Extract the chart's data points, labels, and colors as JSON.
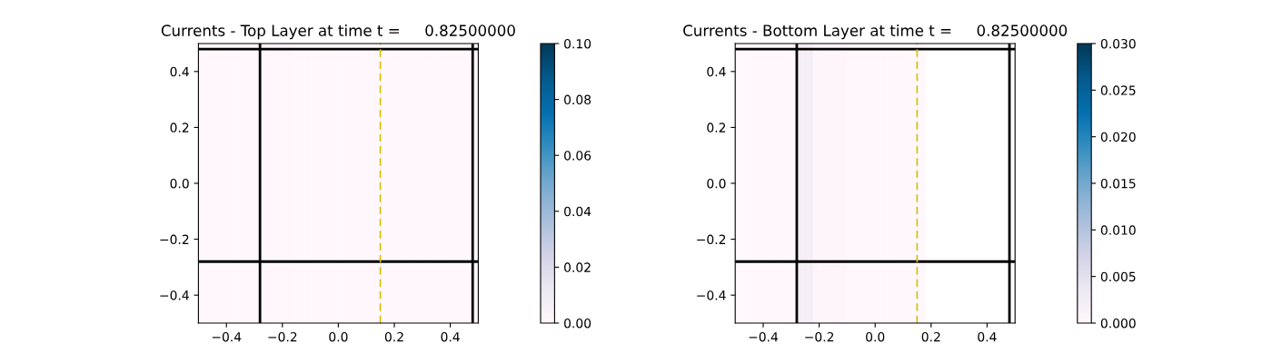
{
  "chart_data": [
    {
      "type": "heatmap",
      "title": "Currents - Top Layer at time t =     0.82500000",
      "x": [
        -0.49,
        -0.47,
        -0.45,
        -0.43,
        -0.41,
        -0.39,
        -0.37,
        -0.35,
        -0.33,
        -0.31,
        -0.29,
        -0.27,
        -0.25,
        -0.23,
        -0.21,
        -0.19,
        -0.17,
        -0.15,
        -0.13,
        -0.11,
        -0.09,
        -0.07,
        -0.05,
        -0.03,
        -0.01,
        0.01,
        0.03,
        0.05,
        0.07,
        0.09,
        0.11,
        0.13,
        0.15,
        0.17,
        0.19,
        0.21,
        0.23,
        0.25,
        0.27,
        0.29,
        0.31,
        0.33,
        0.35,
        0.37,
        0.39,
        0.41,
        0.43,
        0.45,
        0.47,
        0.49
      ],
      "cells": [
        [
          0,
          0,
          0,
          0,
          0,
          0,
          0,
          0,
          0,
          0,
          0,
          0.0005,
          0.0005,
          0.0005,
          0.0005,
          0.0005,
          0.0005,
          0,
          0,
          0,
          0,
          0,
          0,
          0,
          0,
          0,
          0,
          0,
          0,
          0,
          0,
          0,
          0,
          0,
          0,
          0,
          0,
          0,
          0,
          0,
          0,
          0,
          0,
          0,
          0,
          0,
          0,
          0,
          0,
          0
        ]
      ],
      "xlim": [
        -0.5,
        0.5
      ],
      "ylim": [
        -0.5,
        0.5
      ],
      "xticks": [
        {
          "value": -0.4,
          "label": "−0.4"
        },
        {
          "value": -0.2,
          "label": "−0.2"
        },
        {
          "value": 0,
          "label": "0.0"
        },
        {
          "value": 0.2,
          "label": "0.2"
        },
        {
          "value": 0.4,
          "label": "0.4"
        }
      ],
      "yticks": [
        {
          "value": -0.4,
          "label": "−0.4"
        },
        {
          "value": -0.2,
          "label": "−0.2"
        },
        {
          "value": 0,
          "label": "0.0"
        },
        {
          "value": 0.2,
          "label": "0.2"
        },
        {
          "value": 0.4,
          "label": "0.4"
        }
      ],
      "clim": [
        0,
        0.1
      ],
      "cticks": [
        {
          "value": 0,
          "label": "0.00"
        },
        {
          "value": 0.02,
          "label": "0.02"
        },
        {
          "value": 0.04,
          "label": "0.04"
        },
        {
          "value": 0.06,
          "label": "0.06"
        },
        {
          "value": 0.08,
          "label": "0.08"
        },
        {
          "value": 0.1,
          "label": "0.10"
        }
      ],
      "ref_lines": [
        {
          "axis": "x",
          "value": -0.28,
          "color": "#000000",
          "line_style": "solid"
        },
        {
          "axis": "x",
          "value": 0.48,
          "color": "#000000",
          "line_style": "solid"
        },
        {
          "axis": "y",
          "value": 0.48,
          "color": "#000000",
          "line_style": "solid"
        },
        {
          "axis": "y",
          "value": -0.28,
          "color": "#000000",
          "line_style": "solid"
        },
        {
          "axis": "x",
          "value": 0.15,
          "color": "#d4c000",
          "line_style": "dashed"
        }
      ]
    },
    {
      "type": "heatmap",
      "title": "Currents - Bottom Layer at time t =     0.82500000",
      "x": [
        -0.49,
        -0.47,
        -0.45,
        -0.43,
        -0.41,
        -0.39,
        -0.37,
        -0.35,
        -0.33,
        -0.31,
        -0.29,
        -0.27,
        -0.25,
        -0.23,
        -0.21,
        -0.19,
        -0.17,
        -0.15,
        -0.13,
        -0.11,
        -0.09,
        -0.07,
        -0.05,
        -0.03,
        -0.01,
        0.01,
        0.03,
        0.05,
        0.07,
        0.09,
        0.11,
        0.13,
        0.15,
        0.17,
        0.19,
        0.21,
        0.23,
        0.25,
        0.27,
        0.29,
        0.31,
        0.33,
        0.35,
        0.37,
        0.39,
        0.41,
        0.43,
        0.45,
        0.47,
        0.49
      ],
      "cells": [
        [
          0,
          0,
          0,
          0,
          0,
          0,
          0,
          0,
          0,
          0,
          0,
          0.002,
          0.002,
          0.002,
          0.0004,
          0.0004,
          0.0004,
          0.0004,
          0.0004,
          0.0004,
          0,
          0,
          0,
          0,
          0,
          0,
          0,
          0,
          0,
          0,
          0,
          0,
          0,
          0,
          null,
          null,
          null,
          null,
          null,
          null,
          null,
          null,
          null,
          null,
          null,
          null,
          null,
          null,
          null,
          null
        ]
      ],
      "xlim": [
        -0.5,
        0.5
      ],
      "ylim": [
        -0.5,
        0.5
      ],
      "xticks": [
        {
          "value": -0.4,
          "label": "−0.4"
        },
        {
          "value": -0.2,
          "label": "−0.2"
        },
        {
          "value": 0,
          "label": "0.0"
        },
        {
          "value": 0.2,
          "label": "0.2"
        },
        {
          "value": 0.4,
          "label": "0.4"
        }
      ],
      "yticks": [
        {
          "value": -0.4,
          "label": "−0.4"
        },
        {
          "value": -0.2,
          "label": "−0.2"
        },
        {
          "value": 0,
          "label": "0.0"
        },
        {
          "value": 0.2,
          "label": "0.2"
        },
        {
          "value": 0.4,
          "label": "0.4"
        }
      ],
      "clim": [
        0,
        0.03
      ],
      "cticks": [
        {
          "value": 0,
          "label": "0.000"
        },
        {
          "value": 0.005,
          "label": "0.005"
        },
        {
          "value": 0.01,
          "label": "0.010"
        },
        {
          "value": 0.015,
          "label": "0.015"
        },
        {
          "value": 0.02,
          "label": "0.020"
        },
        {
          "value": 0.025,
          "label": "0.025"
        },
        {
          "value": 0.03,
          "label": "0.030"
        }
      ],
      "ref_lines": [
        {
          "axis": "x",
          "value": -0.28,
          "color": "#000000",
          "line_style": "solid"
        },
        {
          "axis": "x",
          "value": 0.48,
          "color": "#000000",
          "line_style": "solid"
        },
        {
          "axis": "y",
          "value": 0.48,
          "color": "#000000",
          "line_style": "solid"
        },
        {
          "axis": "y",
          "value": -0.28,
          "color": "#000000",
          "line_style": "solid"
        },
        {
          "axis": "x",
          "value": 0.15,
          "color": "#d4c000",
          "line_style": "dashed"
        }
      ]
    }
  ]
}
